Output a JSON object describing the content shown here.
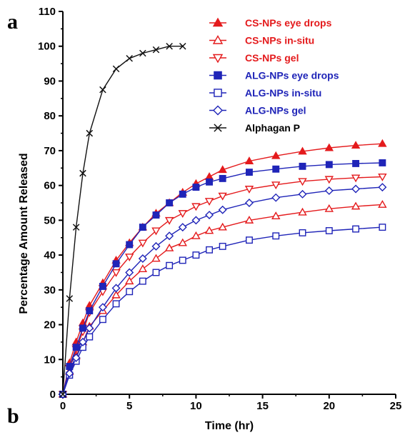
{
  "panel_labels": {
    "top": "a",
    "bottom": "b"
  },
  "chart_data": {
    "type": "line",
    "title": "",
    "xlabel": "Time (hr)",
    "ylabel": "Percentage Amount Released",
    "xlim": [
      0,
      25
    ],
    "ylim": [
      0,
      110
    ],
    "xticks": [
      0,
      5,
      10,
      15,
      20,
      25
    ],
    "yticks": [
      0,
      10,
      20,
      30,
      40,
      50,
      60,
      70,
      80,
      90,
      100,
      110
    ],
    "grid": false,
    "legend_position": "top-right",
    "series": [
      {
        "name": "CS-NPs eye drops",
        "color": "#e41a1c",
        "marker": "triangle-up",
        "filled": true,
        "x": [
          0,
          0.5,
          1,
          1.5,
          2,
          3,
          4,
          5,
          6,
          7,
          8,
          9,
          10,
          11,
          12,
          14,
          16,
          18,
          20,
          22,
          24
        ],
        "y": [
          0,
          9,
          15,
          20.5,
          25.5,
          32,
          38.5,
          43.5,
          48,
          52,
          55,
          58,
          60.5,
          62.5,
          64.5,
          67,
          68.5,
          69.8,
          70.8,
          71.5,
          72
        ]
      },
      {
        "name": "CS-NPs in-situ",
        "color": "#e41a1c",
        "marker": "triangle-up",
        "filled": false,
        "x": [
          0,
          0.5,
          1,
          1.5,
          2,
          3,
          4,
          5,
          6,
          7,
          8,
          9,
          10,
          11,
          12,
          14,
          16,
          18,
          20,
          22,
          24
        ],
        "y": [
          0,
          6.5,
          11,
          15,
          19.5,
          24,
          28.5,
          32.5,
          36,
          39,
          42,
          43.5,
          45.5,
          47,
          48,
          50,
          51.2,
          52.3,
          53.3,
          54,
          54.5
        ]
      },
      {
        "name": "CS-NPs gel",
        "color": "#e41a1c",
        "marker": "triangle-down",
        "filled": false,
        "x": [
          0,
          0.5,
          1,
          1.5,
          2,
          3,
          4,
          5,
          6,
          7,
          8,
          9,
          10,
          11,
          12,
          14,
          16,
          18,
          20,
          22,
          24
        ],
        "y": [
          0,
          7.5,
          13,
          18,
          23.5,
          29.5,
          35,
          39.5,
          43.5,
          47,
          50,
          52,
          54,
          55.5,
          57,
          59,
          60.2,
          61.2,
          61.8,
          62.2,
          62.5
        ]
      },
      {
        "name": "ALG-NPs eye drops",
        "color": "#1f24b8",
        "marker": "square",
        "filled": true,
        "x": [
          0,
          0.5,
          1,
          1.5,
          2,
          3,
          4,
          5,
          6,
          7,
          8,
          9,
          10,
          11,
          12,
          14,
          16,
          18,
          20,
          22,
          24
        ],
        "y": [
          0,
          8,
          13.5,
          19,
          24,
          31,
          37.5,
          43,
          48,
          51.5,
          55,
          57.5,
          59.5,
          61,
          62,
          63.8,
          64.7,
          65.5,
          66,
          66.3,
          66.5
        ]
      },
      {
        "name": "ALG-NPs in-situ",
        "color": "#1f24b8",
        "marker": "square",
        "filled": false,
        "x": [
          0,
          0.5,
          1,
          1.5,
          2,
          3,
          4,
          5,
          6,
          7,
          8,
          9,
          10,
          11,
          12,
          14,
          16,
          18,
          20,
          22,
          24
        ],
        "y": [
          0,
          5.5,
          9.5,
          13.5,
          16.5,
          21.5,
          26,
          29.5,
          32.5,
          35,
          37,
          38.5,
          40,
          41.5,
          42.5,
          44.3,
          45.5,
          46.4,
          47,
          47.5,
          48
        ]
      },
      {
        "name": "ALG-NPs gel",
        "color": "#1f24b8",
        "marker": "diamond",
        "filled": false,
        "x": [
          0,
          0.5,
          1,
          1.5,
          2,
          3,
          4,
          5,
          6,
          7,
          8,
          9,
          10,
          11,
          12,
          14,
          16,
          18,
          20,
          22,
          24
        ],
        "y": [
          0,
          6,
          10.5,
          15,
          19,
          25,
          30.5,
          35,
          39,
          42.5,
          45.5,
          48,
          50,
          51.5,
          53,
          55,
          56.5,
          57.5,
          58.5,
          59,
          59.5
        ]
      },
      {
        "name": "Alphagan P",
        "color": "#111111",
        "marker": "x",
        "filled": false,
        "x": [
          0,
          0.5,
          1,
          1.5,
          2,
          3,
          4,
          5,
          6,
          7,
          8,
          9
        ],
        "y": [
          0,
          27.5,
          48,
          63.5,
          75,
          87.5,
          93.5,
          96.5,
          98,
          99,
          100,
          100
        ]
      }
    ]
  }
}
